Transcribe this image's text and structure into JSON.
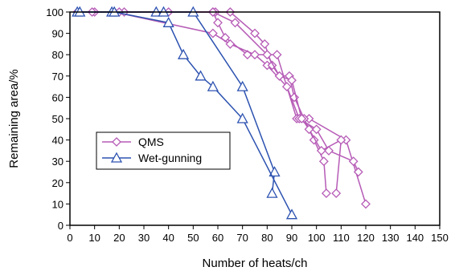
{
  "chart_data": {
    "type": "line",
    "xlabel": "Number of heats/ch",
    "ylabel": "Remaining area/%",
    "xlim": [
      0,
      150
    ],
    "ylim": [
      0,
      100
    ],
    "xticks": [
      0,
      10,
      20,
      30,
      40,
      50,
      60,
      70,
      80,
      90,
      100,
      110,
      120,
      130,
      140,
      150
    ],
    "yticks": [
      0,
      10,
      20,
      30,
      40,
      50,
      60,
      70,
      80,
      90,
      100
    ],
    "grid": false,
    "legend": {
      "position": "center-left",
      "entries": [
        {
          "label": "QMS",
          "marker": "diamond",
          "color": "#b65bb6"
        },
        {
          "label": "Wet-gunning",
          "marker": "triangle",
          "color": "#2c52b0"
        }
      ]
    },
    "series": [
      {
        "name": "QMS",
        "marker": "diamond",
        "color": "#b65bb6",
        "points": [
          [
            3,
            100
          ],
          [
            10,
            100
          ],
          [
            40,
            100
          ],
          [
            58,
            100
          ],
          [
            60,
            95
          ],
          [
            63,
            88
          ],
          [
            72,
            80
          ],
          [
            80,
            80
          ],
          [
            84,
            80
          ],
          [
            92,
            50
          ],
          [
            97,
            50
          ],
          [
            112,
            40
          ],
          [
            120,
            10
          ]
        ]
      },
      {
        "name": "QMS",
        "marker": "diamond",
        "color": "#b65bb6",
        "points": [
          [
            18,
            100
          ],
          [
            58,
            90
          ],
          [
            65,
            85
          ],
          [
            75,
            80
          ],
          [
            80,
            75
          ],
          [
            88,
            65
          ],
          [
            93,
            50
          ],
          [
            100,
            45
          ],
          [
            105,
            35
          ],
          [
            115,
            30
          ],
          [
            117,
            25
          ]
        ]
      },
      {
        "name": "QMS",
        "marker": "diamond",
        "color": "#b65bb6",
        "points": [
          [
            22,
            100
          ],
          [
            59,
            100
          ],
          [
            65,
            100
          ],
          [
            75,
            90
          ],
          [
            79,
            85
          ],
          [
            82,
            75
          ],
          [
            85,
            70
          ],
          [
            89,
            70
          ],
          [
            91,
            60
          ],
          [
            95,
            50
          ],
          [
            99,
            40
          ],
          [
            103,
            30
          ],
          [
            104,
            15
          ]
        ]
      },
      {
        "name": "QMS",
        "marker": "diamond",
        "color": "#b65bb6",
        "points": [
          [
            9,
            100
          ],
          [
            20,
            100
          ],
          [
            58,
            100
          ],
          [
            67,
            95
          ],
          [
            80,
            80
          ],
          [
            85,
            70
          ],
          [
            90,
            68
          ],
          [
            94,
            50
          ],
          [
            97,
            45
          ],
          [
            102,
            35
          ],
          [
            110,
            40
          ],
          [
            108,
            15
          ]
        ]
      },
      {
        "name": "Wet-gunning",
        "marker": "triangle",
        "color": "#2c52b0",
        "points": [
          [
            3,
            100
          ],
          [
            17,
            100
          ],
          [
            35,
            100
          ],
          [
            38,
            100
          ],
          [
            50,
            100
          ],
          [
            70,
            65
          ],
          [
            83,
            25
          ],
          [
            82,
            15
          ]
        ]
      },
      {
        "name": "Wet-gunning",
        "marker": "triangle",
        "color": "#2c52b0",
        "points": [
          [
            4,
            100
          ],
          [
            18,
            100
          ],
          [
            40,
            95
          ],
          [
            46,
            80
          ],
          [
            53,
            70
          ],
          [
            58,
            65
          ],
          [
            70,
            50
          ],
          [
            90,
            5
          ]
        ]
      }
    ]
  }
}
